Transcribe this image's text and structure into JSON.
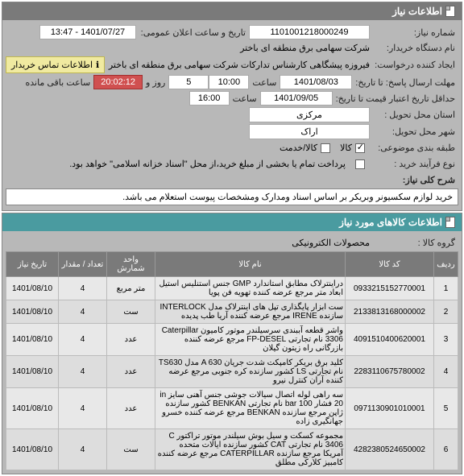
{
  "header": {
    "title": "اطلاعات نیاز"
  },
  "fields": {
    "need_number_label": "شماره نیاز:",
    "need_number": "1101001218000249",
    "announce_date_label": "تاریخ و ساعت اعلان عمومی:",
    "announce_date": "1401/07/27 - 13:47",
    "buyer_name_label": "نام دستگاه خریدار:",
    "buyer_name": "شرکت سهامی برق منطقه ای باختر",
    "request_creator_label": "ایجاد کننده درخواست:",
    "request_creator": "فیروزه پیشگاهی کارشناس تدارکات شرکت سهامی برق منطقه ای باختر",
    "contact_note": "اطلاعات تماس خریدار",
    "reply_deadline_label": "مهلت ارسال پاسخ: تا تاریخ:",
    "reply_deadline_date": "1401/08/03",
    "time_label": "ساعت",
    "reply_deadline_time": "10:00",
    "remain_label_days": "روز و",
    "remain_days": "5",
    "remain_time": "20:02:12",
    "remain_suffix": "ساعت باقی مانده",
    "valid_min_label": "حداقل تاریخ اعتبار قیمت تا تاریخ:",
    "valid_min_date": "1401/09/05",
    "valid_min_time": "16:00",
    "province_label": "استان محل تحویل :",
    "province": "مرکزی",
    "city_label": "شهر محل تحویل:",
    "city": "اراک",
    "subject_class_label": "طبقه بندی موضوعی:",
    "cb_goods": "کالا",
    "cb_service": "کالا/خدمت",
    "buy_type_label": "نوع فرآیند خرید :",
    "buy_type_note": "پرداخت تمام یا بخشی از مبلغ خرید،از محل \"اسناد خزانه اسلامی\" خواهد بود.",
    "need_desc_label": "شرح کلی نیاز:",
    "need_desc": "خرید لوازم سکسیونر وبریکر بر اساس اسناد ومدارک ومشخصات پیوست استعلام می باشد."
  },
  "goods_header": {
    "title": "اطلاعات کالاهای مورد نیاز"
  },
  "goods_group_label": "گروه کالا :",
  "goods_group": "محصولات الکترونیکی",
  "table": {
    "columns": [
      "ردیف",
      "کد کالا",
      "نام کالا",
      "واحد شمارش",
      "تعداد / مقدار",
      "تاریخ نیاز"
    ],
    "rows": [
      [
        "1",
        "0933215152770001",
        "دراینترلاک مطابق استاندارد GMP جنس استنلیس استیل ابعاد متر مرجع عرضه کننده تهویه فن پویا",
        "متر مربع",
        "4",
        "1401/08/10"
      ],
      [
        "2",
        "2133813168000002",
        "ست ابزار پایگذاری تپل های اینترلاک مدل INTERLOCK سازنده IRENE مرجع عرضه کننده آریا طب پدیده",
        "ست",
        "4",
        "1401/08/10"
      ],
      [
        "3",
        "4091510400620001",
        "واشر قطعه آببندی سرسیلندر موتور کامیون Caterpillar 3306 نام تجارتی FP-DESEL مرجع عرضه کننده بازرگانی راه زیتون گیلان",
        "عدد",
        "4",
        "1401/08/10"
      ],
      [
        "4",
        "2283110675780002",
        "کلید برق بریکر کامپکت شدت جریان A 630 مدل TS630 نام تجارتی LS کشور سازنده کره جنوبی مرجع عرضه کننده آران کنترل نیرو",
        "عدد",
        "4",
        "1401/08/10"
      ],
      [
        "5",
        "0971130901010001",
        "سه راهی لوله اتصال سیالات جوشی جنس آهنی سایز in 20 فشار bar 100 نام تجارتی BENKAN کشور سازنده ژاپن مرجع سازنده BENKAN مرجع عرضه کننده خسرو جهانگیری زاده",
        "عدد",
        "4",
        "1401/08/10"
      ],
      [
        "6",
        "4282380524650002",
        "مجموعه کسکت و سیل بوش سیلندر موتور تراکتور C 3406 نام تجارتی CAT کشور سازنده ایالات متحده آمریکا مرجع سازنده CATERPILLAR مرجع عرضه کننده کامبیز کلارکی مطلق",
        "ست",
        "4",
        "1401/08/10"
      ]
    ]
  }
}
